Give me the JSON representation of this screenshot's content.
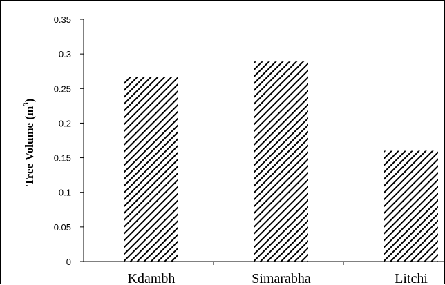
{
  "chart_data": {
    "type": "bar",
    "categories": [
      "Kdambh",
      "Simarabha",
      "Litchi"
    ],
    "values": [
      0.267,
      0.289,
      0.16
    ],
    "ylabel": "Tree Volume (m",
    "ylabel_superscript": "3",
    "ylabel_suffix": ")",
    "ylim": [
      0,
      0.35
    ],
    "yticks": [
      "0",
      "0.05",
      "0.1",
      "0.15",
      "0.2",
      "0.25",
      "0.3",
      "0.35"
    ],
    "grid": false,
    "bar_fill": "diagonal-hatch",
    "bar_color": "#000000"
  }
}
